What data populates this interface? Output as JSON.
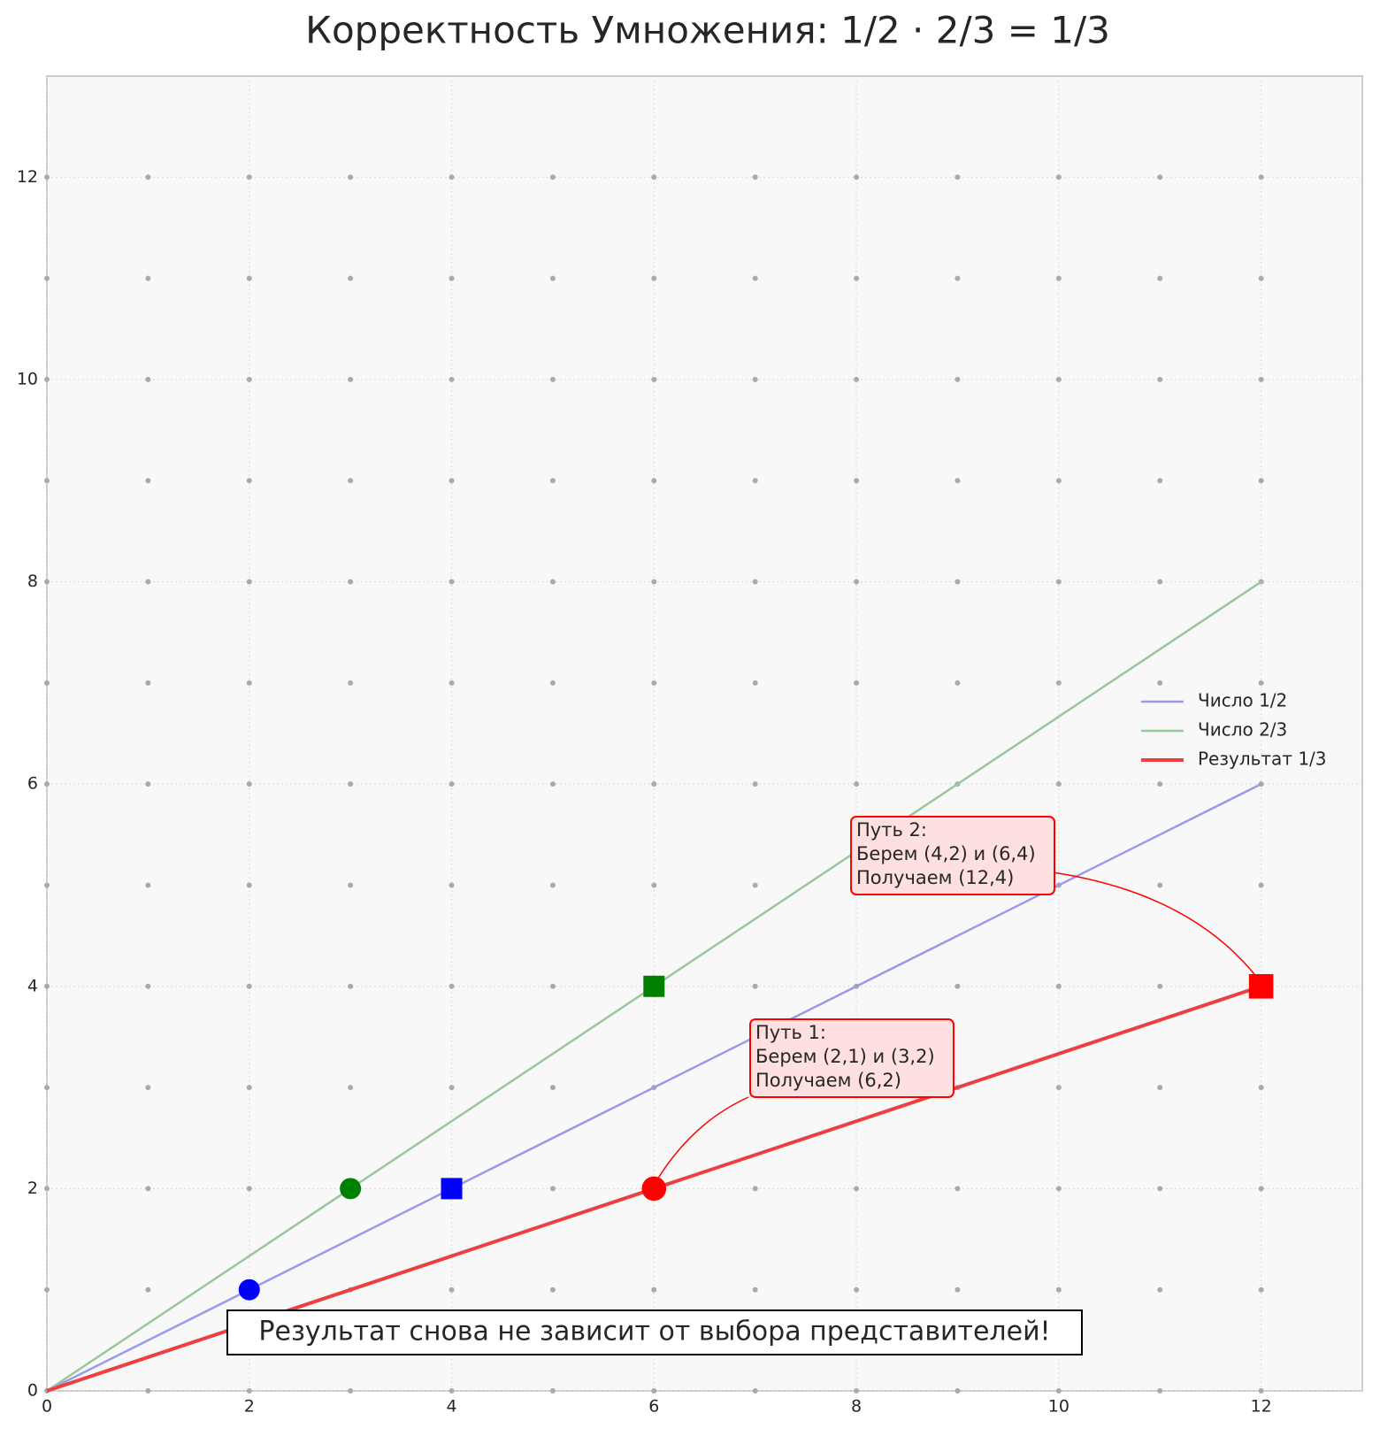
{
  "chart_data": {
    "type": "line",
    "title": "Корректность Умножения: 1/2 · 2/3 = 1/3",
    "xlim": [
      0,
      13
    ],
    "ylim": [
      0,
      13
    ],
    "xticks": [
      0,
      2,
      4,
      6,
      8,
      10,
      12
    ],
    "yticks": [
      0,
      2,
      4,
      6,
      8,
      10,
      12
    ],
    "grid": true,
    "legend": "center right",
    "lattice": {
      "color": "#aaaaaa",
      "x": [
        0,
        1,
        2,
        3,
        4,
        5,
        6,
        7,
        8,
        9,
        10,
        11,
        12
      ],
      "y": [
        0,
        1,
        2,
        3,
        4,
        5,
        6,
        7,
        8,
        9,
        10,
        11,
        12
      ]
    },
    "series": [
      {
        "name": "Число 1/2",
        "color": "#9999ee",
        "x": [
          0,
          12
        ],
        "values": [
          0,
          6
        ]
      },
      {
        "name": "Число 2/3",
        "color": "#99c799",
        "x": [
          0,
          12
        ],
        "values": [
          0,
          8
        ]
      },
      {
        "name": "Результат 1/3",
        "color": "#ec4040",
        "x": [
          0,
          12
        ],
        "values": [
          0,
          4
        ]
      }
    ],
    "points": [
      {
        "x": 2,
        "y": 1,
        "marker": "circle",
        "color": "#0000ff"
      },
      {
        "x": 4,
        "y": 2,
        "marker": "square",
        "color": "#0000ff"
      },
      {
        "x": 3,
        "y": 2,
        "marker": "circle",
        "color": "#008000"
      },
      {
        "x": 6,
        "y": 4,
        "marker": "square",
        "color": "#008000"
      },
      {
        "x": 6,
        "y": 2,
        "marker": "circle",
        "color": "#ff0000"
      },
      {
        "x": 12,
        "y": 4,
        "marker": "square",
        "color": "#ff0000"
      }
    ],
    "annotations": [
      {
        "lines": [
          "Путь 1:",
          "Берем (2,1) и (3,2)",
          "Получаем (6,2)"
        ],
        "target": [
          6,
          2
        ]
      },
      {
        "lines": [
          "Путь 2:",
          "Берем (4,2) и (6,4)",
          "Получаем (12,4)"
        ],
        "target": [
          12,
          4
        ]
      }
    ],
    "note": "Результат снова не зависит от выбора представителей!"
  }
}
